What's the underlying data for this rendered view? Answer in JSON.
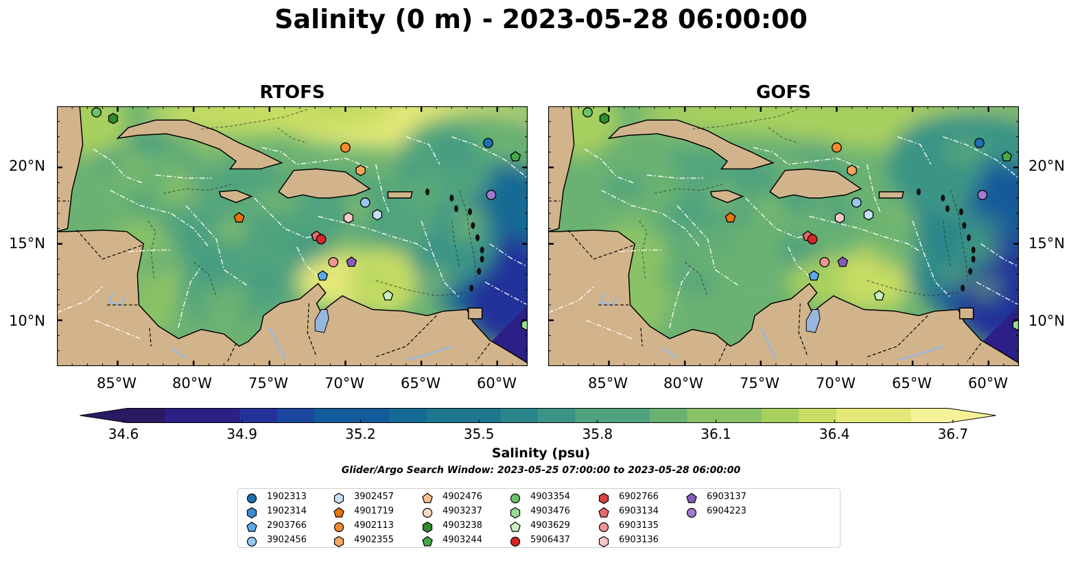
{
  "title": "Salinity (0 m) - 2023-05-28 06:00:00",
  "panels": [
    {
      "title": "RTOFS"
    },
    {
      "title": "GOFS"
    }
  ],
  "axes": {
    "lon_ticks": [
      "85°W",
      "80°W",
      "75°W",
      "70°W",
      "65°W",
      "60°W"
    ],
    "lat_ticks": [
      "20°N",
      "15°N",
      "10°N"
    ]
  },
  "colorbar": {
    "label": "Salinity (psu)",
    "ticks": [
      "34.6",
      "34.9",
      "35.2",
      "35.5",
      "35.8",
      "36.1",
      "36.4",
      "36.7"
    ],
    "range": [
      34.6,
      36.7
    ],
    "extend": "both",
    "colormap": "haline"
  },
  "search_window": "Glider/Argo Search Window: 2023-05-25 07:00:00 to 2023-05-28 06:00:00",
  "legend": {
    "items": [
      {
        "label": "1902313",
        "marker": "circle",
        "color": "#1f6fb2"
      },
      {
        "label": "1902314",
        "marker": "hexagon",
        "color": "#3c8ad1"
      },
      {
        "label": "2903766",
        "marker": "pentagon",
        "color": "#5ea8e6"
      },
      {
        "label": "3902456",
        "marker": "circle",
        "color": "#98c7f0"
      },
      {
        "label": "3902457",
        "marker": "hexagon",
        "color": "#c5e0f7"
      },
      {
        "label": "4901719",
        "marker": "pentagon",
        "color": "#e8740c"
      },
      {
        "label": "4902113",
        "marker": "circle",
        "color": "#f58b2d"
      },
      {
        "label": "4902355",
        "marker": "hexagon",
        "color": "#f7a660"
      },
      {
        "label": "4902476",
        "marker": "pentagon",
        "color": "#fac08e"
      },
      {
        "label": "4903237",
        "marker": "circle",
        "color": "#fcdcc0"
      },
      {
        "label": "4903238",
        "marker": "hexagon",
        "color": "#2e8b2e"
      },
      {
        "label": "4903244",
        "marker": "pentagon",
        "color": "#4aa64a"
      },
      {
        "label": "4903354",
        "marker": "circle",
        "color": "#6cc16c"
      },
      {
        "label": "4903476",
        "marker": "hexagon",
        "color": "#98dc98"
      },
      {
        "label": "4903629",
        "marker": "pentagon",
        "color": "#c8f0c0"
      },
      {
        "label": "5906437",
        "marker": "circle",
        "color": "#d62728"
      },
      {
        "label": "6902766",
        "marker": "hexagon",
        "color": "#d84242"
      },
      {
        "label": "6903134",
        "marker": "pentagon",
        "color": "#e76a6a"
      },
      {
        "label": "6903135",
        "marker": "circle",
        "color": "#f09595"
      },
      {
        "label": "6903136",
        "marker": "hexagon",
        "color": "#f8c8c8"
      },
      {
        "label": "6903137",
        "marker": "pentagon",
        "color": "#8a5bbd"
      },
      {
        "label": "6904223",
        "marker": "circle",
        "color": "#a07cd0"
      }
    ]
  },
  "floats": [
    {
      "id": "4903238",
      "lon": -85.3,
      "lat": 23.2
    },
    {
      "id": "4903354",
      "lon": -86.4,
      "lat": 23.6
    },
    {
      "id": "4902113",
      "lon": -70.0,
      "lat": 21.3
    },
    {
      "id": "1902313",
      "lon": -60.6,
      "lat": 21.6
    },
    {
      "id": "4903244",
      "lon": -58.8,
      "lat": 20.7
    },
    {
      "id": "4902355",
      "lon": -69.0,
      "lat": 19.8
    },
    {
      "id": "6904223",
      "lon": -60.4,
      "lat": 18.2
    },
    {
      "id": "3902456",
      "lon": -68.7,
      "lat": 17.7
    },
    {
      "id": "3902457",
      "lon": -67.9,
      "lat": 16.9
    },
    {
      "id": "6903136",
      "lon": -69.8,
      "lat": 16.7
    },
    {
      "id": "4901719",
      "lon": -77.0,
      "lat": 16.7
    },
    {
      "id": "6903134",
      "lon": -71.9,
      "lat": 15.5
    },
    {
      "id": "5906437",
      "lon": -71.6,
      "lat": 15.3
    },
    {
      "id": "6903135",
      "lon": -70.8,
      "lat": 13.8
    },
    {
      "id": "6903137",
      "lon": -69.6,
      "lat": 13.8
    },
    {
      "id": "2903766",
      "lon": -71.5,
      "lat": 12.9
    },
    {
      "id": "4903629",
      "lon": -67.2,
      "lat": 11.6
    },
    {
      "id": "4903476",
      "lon": -58.1,
      "lat": 9.7
    }
  ]
}
